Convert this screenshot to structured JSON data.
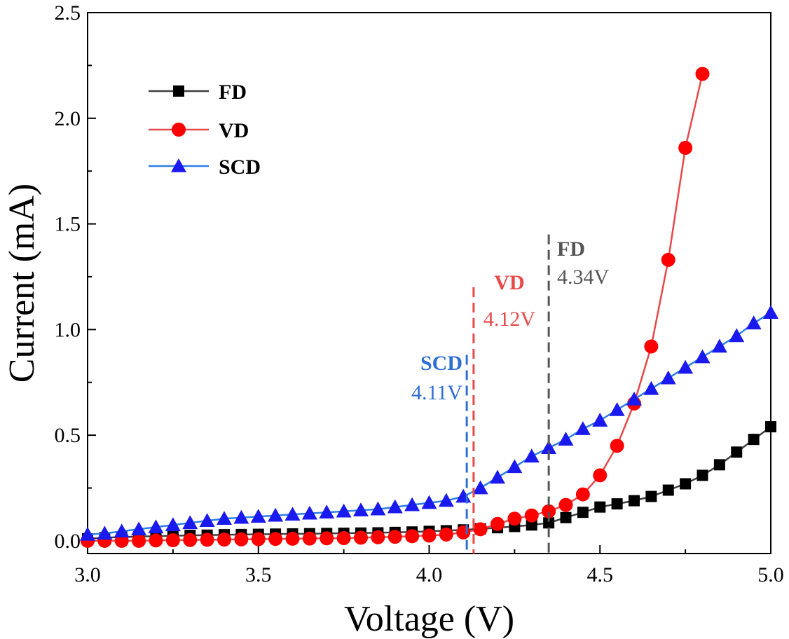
{
  "colors": {
    "FD": "#000000",
    "FD_line": "#404040",
    "VD": "#ff0000",
    "VD_line": "#e8484a",
    "SCD": "#1a1aee",
    "SCD_line": "#2f7fe6",
    "FD_anno": "#555555",
    "VD_anno": "#e84a4a",
    "SCD_anno": "#2e6fd6"
  },
  "chart_data": {
    "type": "line",
    "title": "",
    "xlabel": "Voltage (V)",
    "ylabel": "Current (mA)",
    "xlim": [
      3.0,
      5.0
    ],
    "ylim": [
      -0.06,
      2.5
    ],
    "xticks": [
      "3.0",
      "3.5",
      "4.0",
      "4.5",
      "5.0"
    ],
    "yticks": [
      "0.0",
      "0.5",
      "1.0",
      "1.5",
      "2.0",
      "2.5"
    ],
    "legend_position": "top-left",
    "series": [
      {
        "name": "FD",
        "marker": "square",
        "x": [
          3.0,
          3.05,
          3.1,
          3.15,
          3.2,
          3.25,
          3.3,
          3.35,
          3.4,
          3.45,
          3.5,
          3.55,
          3.6,
          3.65,
          3.7,
          3.75,
          3.8,
          3.85,
          3.9,
          3.95,
          4.0,
          4.05,
          4.1,
          4.15,
          4.2,
          4.25,
          4.3,
          4.35,
          4.4,
          4.45,
          4.5,
          4.55,
          4.6,
          4.65,
          4.7,
          4.75,
          4.8,
          4.85,
          4.9,
          4.95,
          5.0
        ],
        "values": [
          0.01,
          0.015,
          0.018,
          0.02,
          0.022,
          0.024,
          0.026,
          0.027,
          0.029,
          0.03,
          0.031,
          0.032,
          0.033,
          0.034,
          0.035,
          0.036,
          0.037,
          0.038,
          0.04,
          0.042,
          0.045,
          0.048,
          0.052,
          0.057,
          0.062,
          0.068,
          0.075,
          0.085,
          0.11,
          0.135,
          0.16,
          0.175,
          0.19,
          0.21,
          0.24,
          0.27,
          0.31,
          0.36,
          0.42,
          0.48,
          0.54
        ]
      },
      {
        "name": "VD",
        "marker": "circle",
        "x": [
          3.0,
          3.05,
          3.1,
          3.15,
          3.2,
          3.25,
          3.3,
          3.35,
          3.4,
          3.45,
          3.5,
          3.55,
          3.6,
          3.65,
          3.7,
          3.75,
          3.8,
          3.85,
          3.9,
          3.95,
          4.0,
          4.05,
          4.1,
          4.15,
          4.2,
          4.25,
          4.3,
          4.35,
          4.4,
          4.45,
          4.5,
          4.55,
          4.6,
          4.65,
          4.7,
          4.75,
          4.8
        ],
        "values": [
          0.0,
          0.0,
          0.0,
          0.0,
          0.002,
          0.003,
          0.004,
          0.005,
          0.006,
          0.007,
          0.008,
          0.009,
          0.01,
          0.011,
          0.012,
          0.013,
          0.015,
          0.017,
          0.019,
          0.022,
          0.025,
          0.03,
          0.04,
          0.055,
          0.08,
          0.105,
          0.12,
          0.14,
          0.17,
          0.22,
          0.31,
          0.45,
          0.65,
          0.92,
          1.33,
          1.86,
          2.21
        ]
      },
      {
        "name": "SCD",
        "marker": "triangle",
        "x": [
          3.0,
          3.05,
          3.1,
          3.15,
          3.2,
          3.25,
          3.3,
          3.35,
          3.4,
          3.45,
          3.5,
          3.55,
          3.6,
          3.65,
          3.7,
          3.75,
          3.8,
          3.85,
          3.9,
          3.95,
          4.0,
          4.05,
          4.1,
          4.15,
          4.2,
          4.25,
          4.3,
          4.35,
          4.4,
          4.45,
          4.5,
          4.55,
          4.6,
          4.65,
          4.7,
          4.75,
          4.8,
          4.85,
          4.9,
          4.95,
          5.0
        ],
        "values": [
          0.03,
          0.035,
          0.045,
          0.055,
          0.065,
          0.075,
          0.085,
          0.095,
          0.105,
          0.11,
          0.115,
          0.12,
          0.125,
          0.13,
          0.135,
          0.14,
          0.145,
          0.15,
          0.16,
          0.17,
          0.18,
          0.19,
          0.21,
          0.25,
          0.3,
          0.35,
          0.4,
          0.44,
          0.48,
          0.53,
          0.57,
          0.62,
          0.67,
          0.72,
          0.77,
          0.82,
          0.87,
          0.92,
          0.97,
          1.03,
          1.08
        ]
      }
    ],
    "annotations": [
      {
        "series": "SCD",
        "name": "SCD",
        "value": "4.11V",
        "x": 4.11,
        "y_top": 0.88
      },
      {
        "series": "VD",
        "name": "VD",
        "value": "4.12V",
        "x": 4.13,
        "y_top": 1.2
      },
      {
        "series": "FD",
        "name": "FD",
        "value": "4.34V",
        "x": 4.35,
        "y_top": 1.45
      }
    ]
  }
}
